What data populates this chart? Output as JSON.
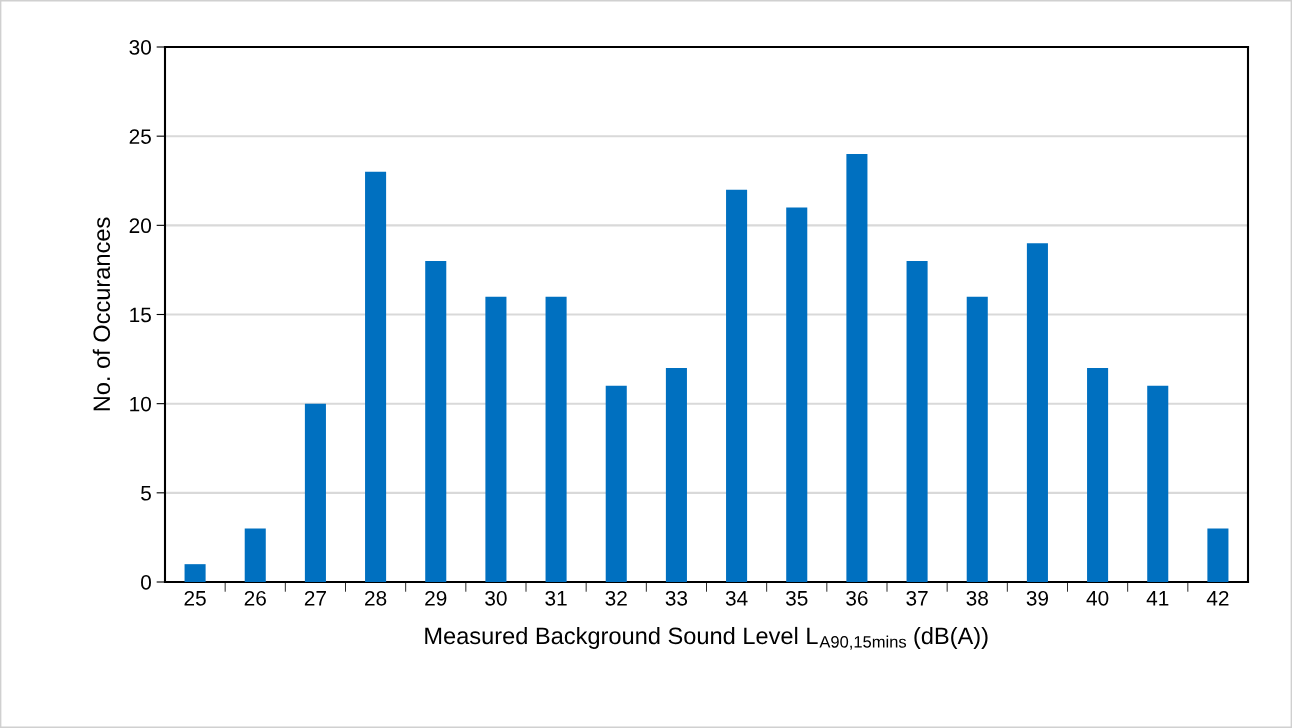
{
  "chart_data": {
    "type": "bar",
    "xlabel": "Measured Background Sound Level L$_{A90,15mins}$ (dB(A))",
    "ylabel": "No. of Occurances",
    "categories": [
      "25",
      "26",
      "27",
      "28",
      "29",
      "30",
      "31",
      "32",
      "33",
      "34",
      "35",
      "36",
      "37",
      "38",
      "39",
      "40",
      "41",
      "42"
    ],
    "values": [
      1,
      3,
      10,
      23,
      18,
      16,
      16,
      11,
      12,
      22,
      21,
      24,
      18,
      16,
      19,
      12,
      11,
      3
    ],
    "color": "#0070c0",
    "ylim": [
      0,
      30
    ],
    "yticks": [
      0,
      5,
      10,
      15,
      20,
      25,
      30
    ],
    "grid": "y"
  }
}
